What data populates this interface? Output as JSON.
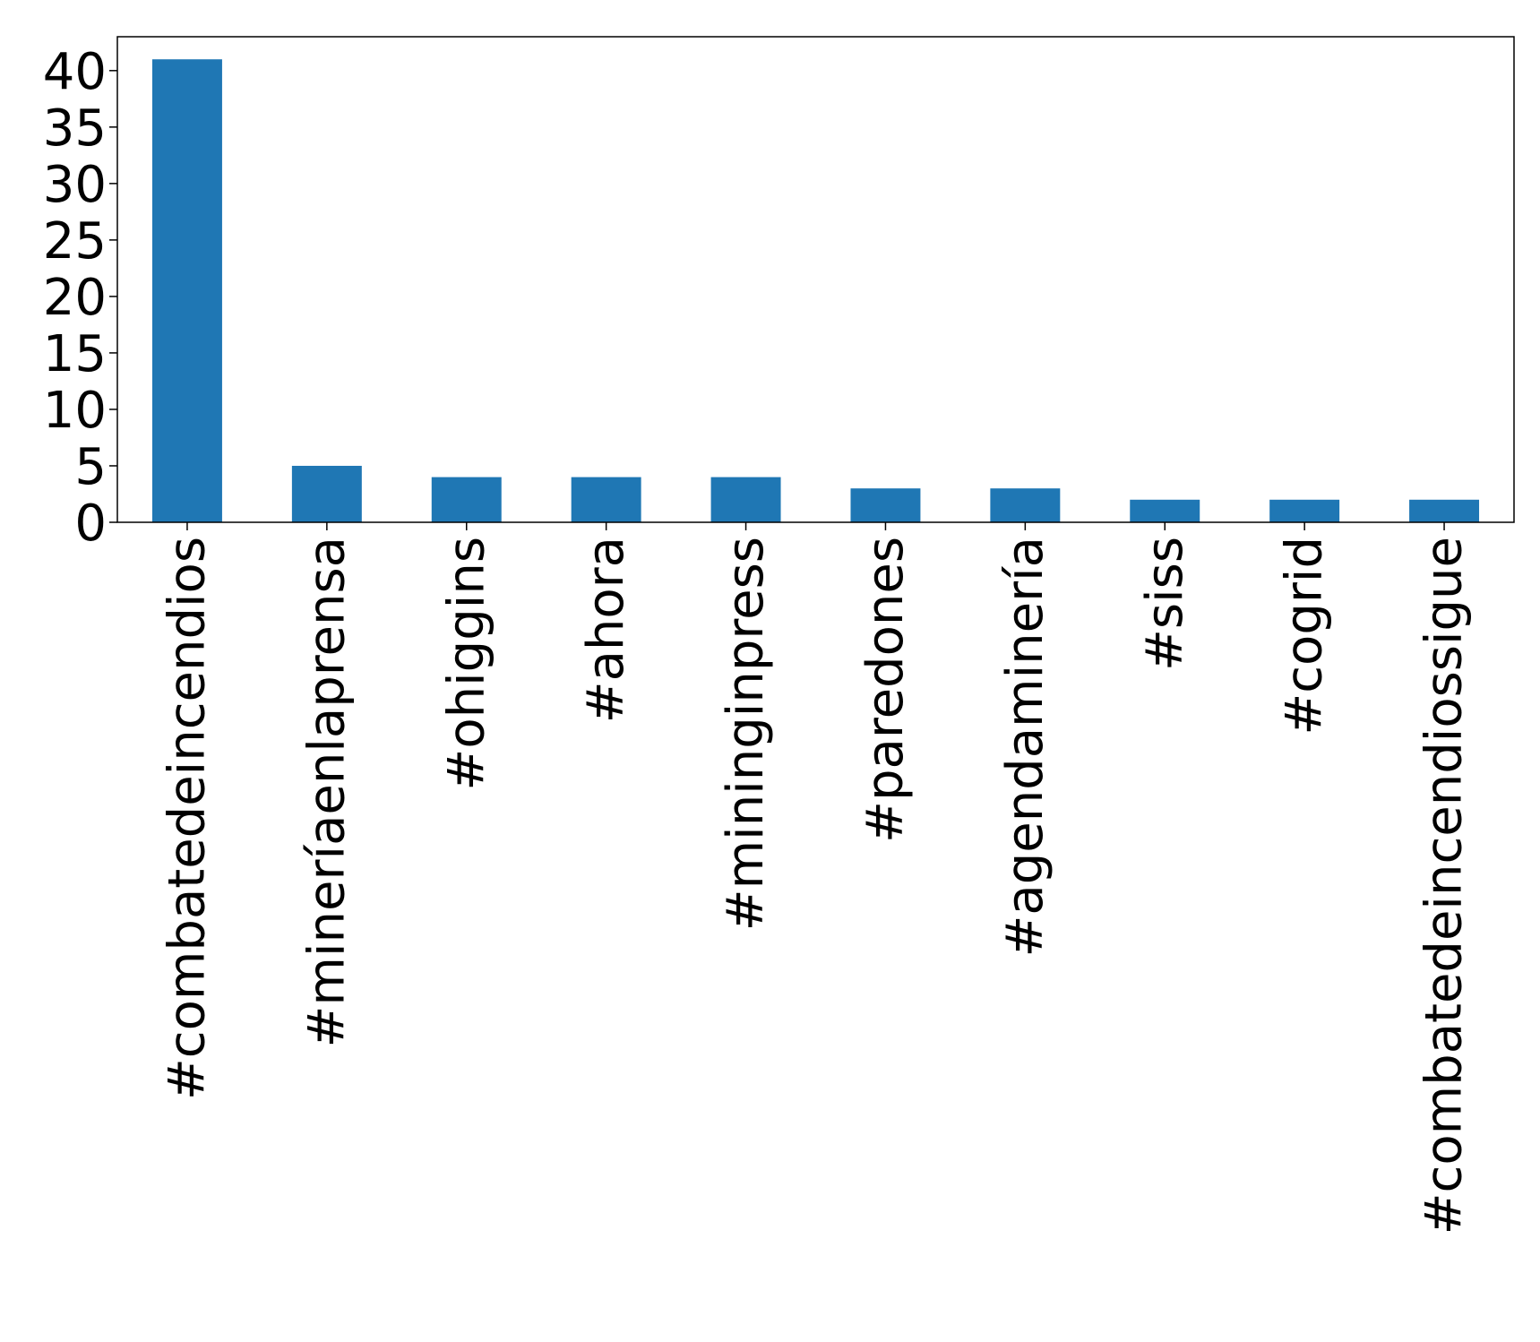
{
  "chart_data": {
    "type": "bar",
    "title": "",
    "xlabel": "",
    "ylabel": "",
    "categories": [
      "#combatedeincendios",
      "#mineríaenlaprensa",
      "#ohiggins",
      "#ahora",
      "#mininginpress",
      "#paredones",
      "#agendaminería",
      "#siss",
      "#cogrid",
      "#combatedeincendiossigue"
    ],
    "values": [
      41,
      5,
      4,
      4,
      4,
      3,
      3,
      2,
      2,
      2
    ],
    "ylim": [
      0,
      43
    ],
    "yticks": [
      0,
      5,
      10,
      15,
      20,
      25,
      30,
      35,
      40
    ],
    "grid": false,
    "legend": "none",
    "bar_color": "#1f77b4"
  }
}
